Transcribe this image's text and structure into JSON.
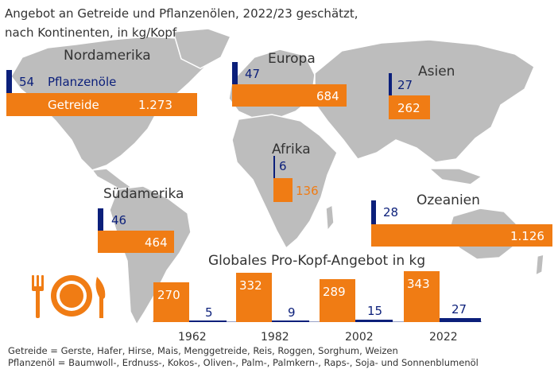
{
  "title_line1": "Angebot an Getreide und Pflanzenölen, 2022/23 geschätzt,",
  "title_line2": "nach Kontinenten, in kg/Kopf",
  "colors": {
    "grain": "#f07c14",
    "oil": "#0b1f7a",
    "land": "#bdbdbd"
  },
  "legend": {
    "oil": "Pflanzenöle",
    "grain": "Getreide"
  },
  "chart_data": [
    {
      "type": "bar",
      "title": "Angebot an Getreide und Pflanzenölen nach Kontinenten",
      "unit": "kg/Kopf",
      "categories": [
        "Nordamerika",
        "Europa",
        "Asien",
        "Afrika",
        "Südamerika",
        "Ozeanien"
      ],
      "series": [
        {
          "name": "Getreide",
          "values": [
            1273,
            684,
            262,
            136,
            464,
            1126
          ],
          "labels": [
            "1.273",
            "684",
            "262",
            "136",
            "464",
            "1.126"
          ]
        },
        {
          "name": "Pflanzenöle",
          "values": [
            54,
            47,
            27,
            6,
            46,
            28
          ],
          "labels": [
            "54",
            "47",
            "27",
            "6",
            "46",
            "28"
          ]
        }
      ]
    },
    {
      "type": "bar",
      "title": "Globales Pro-Kopf-Angebot in kg",
      "categories": [
        "1962",
        "1982",
        "2002",
        "2022"
      ],
      "series": [
        {
          "name": "Getreide",
          "values": [
            270,
            332,
            289,
            343
          ],
          "labels": [
            "270",
            "332",
            "289",
            "343"
          ]
        },
        {
          "name": "Pflanzenöle",
          "values": [
            5,
            9,
            15,
            27
          ],
          "labels": [
            "5",
            "9",
            "15",
            "27"
          ]
        }
      ]
    }
  ],
  "footnote_grain": "Getreide = Gerste, Hafer, Hirse, Mais, Menggetreide, Reis, Roggen, Sorghum, Weizen",
  "footnote_oil": "Pflanzenöl = Baumwoll-, Erdnuss-, Kokos-, Oliven-, Palm-, Palmkern-, Raps-, Soja- und Sonnenblumenöl"
}
